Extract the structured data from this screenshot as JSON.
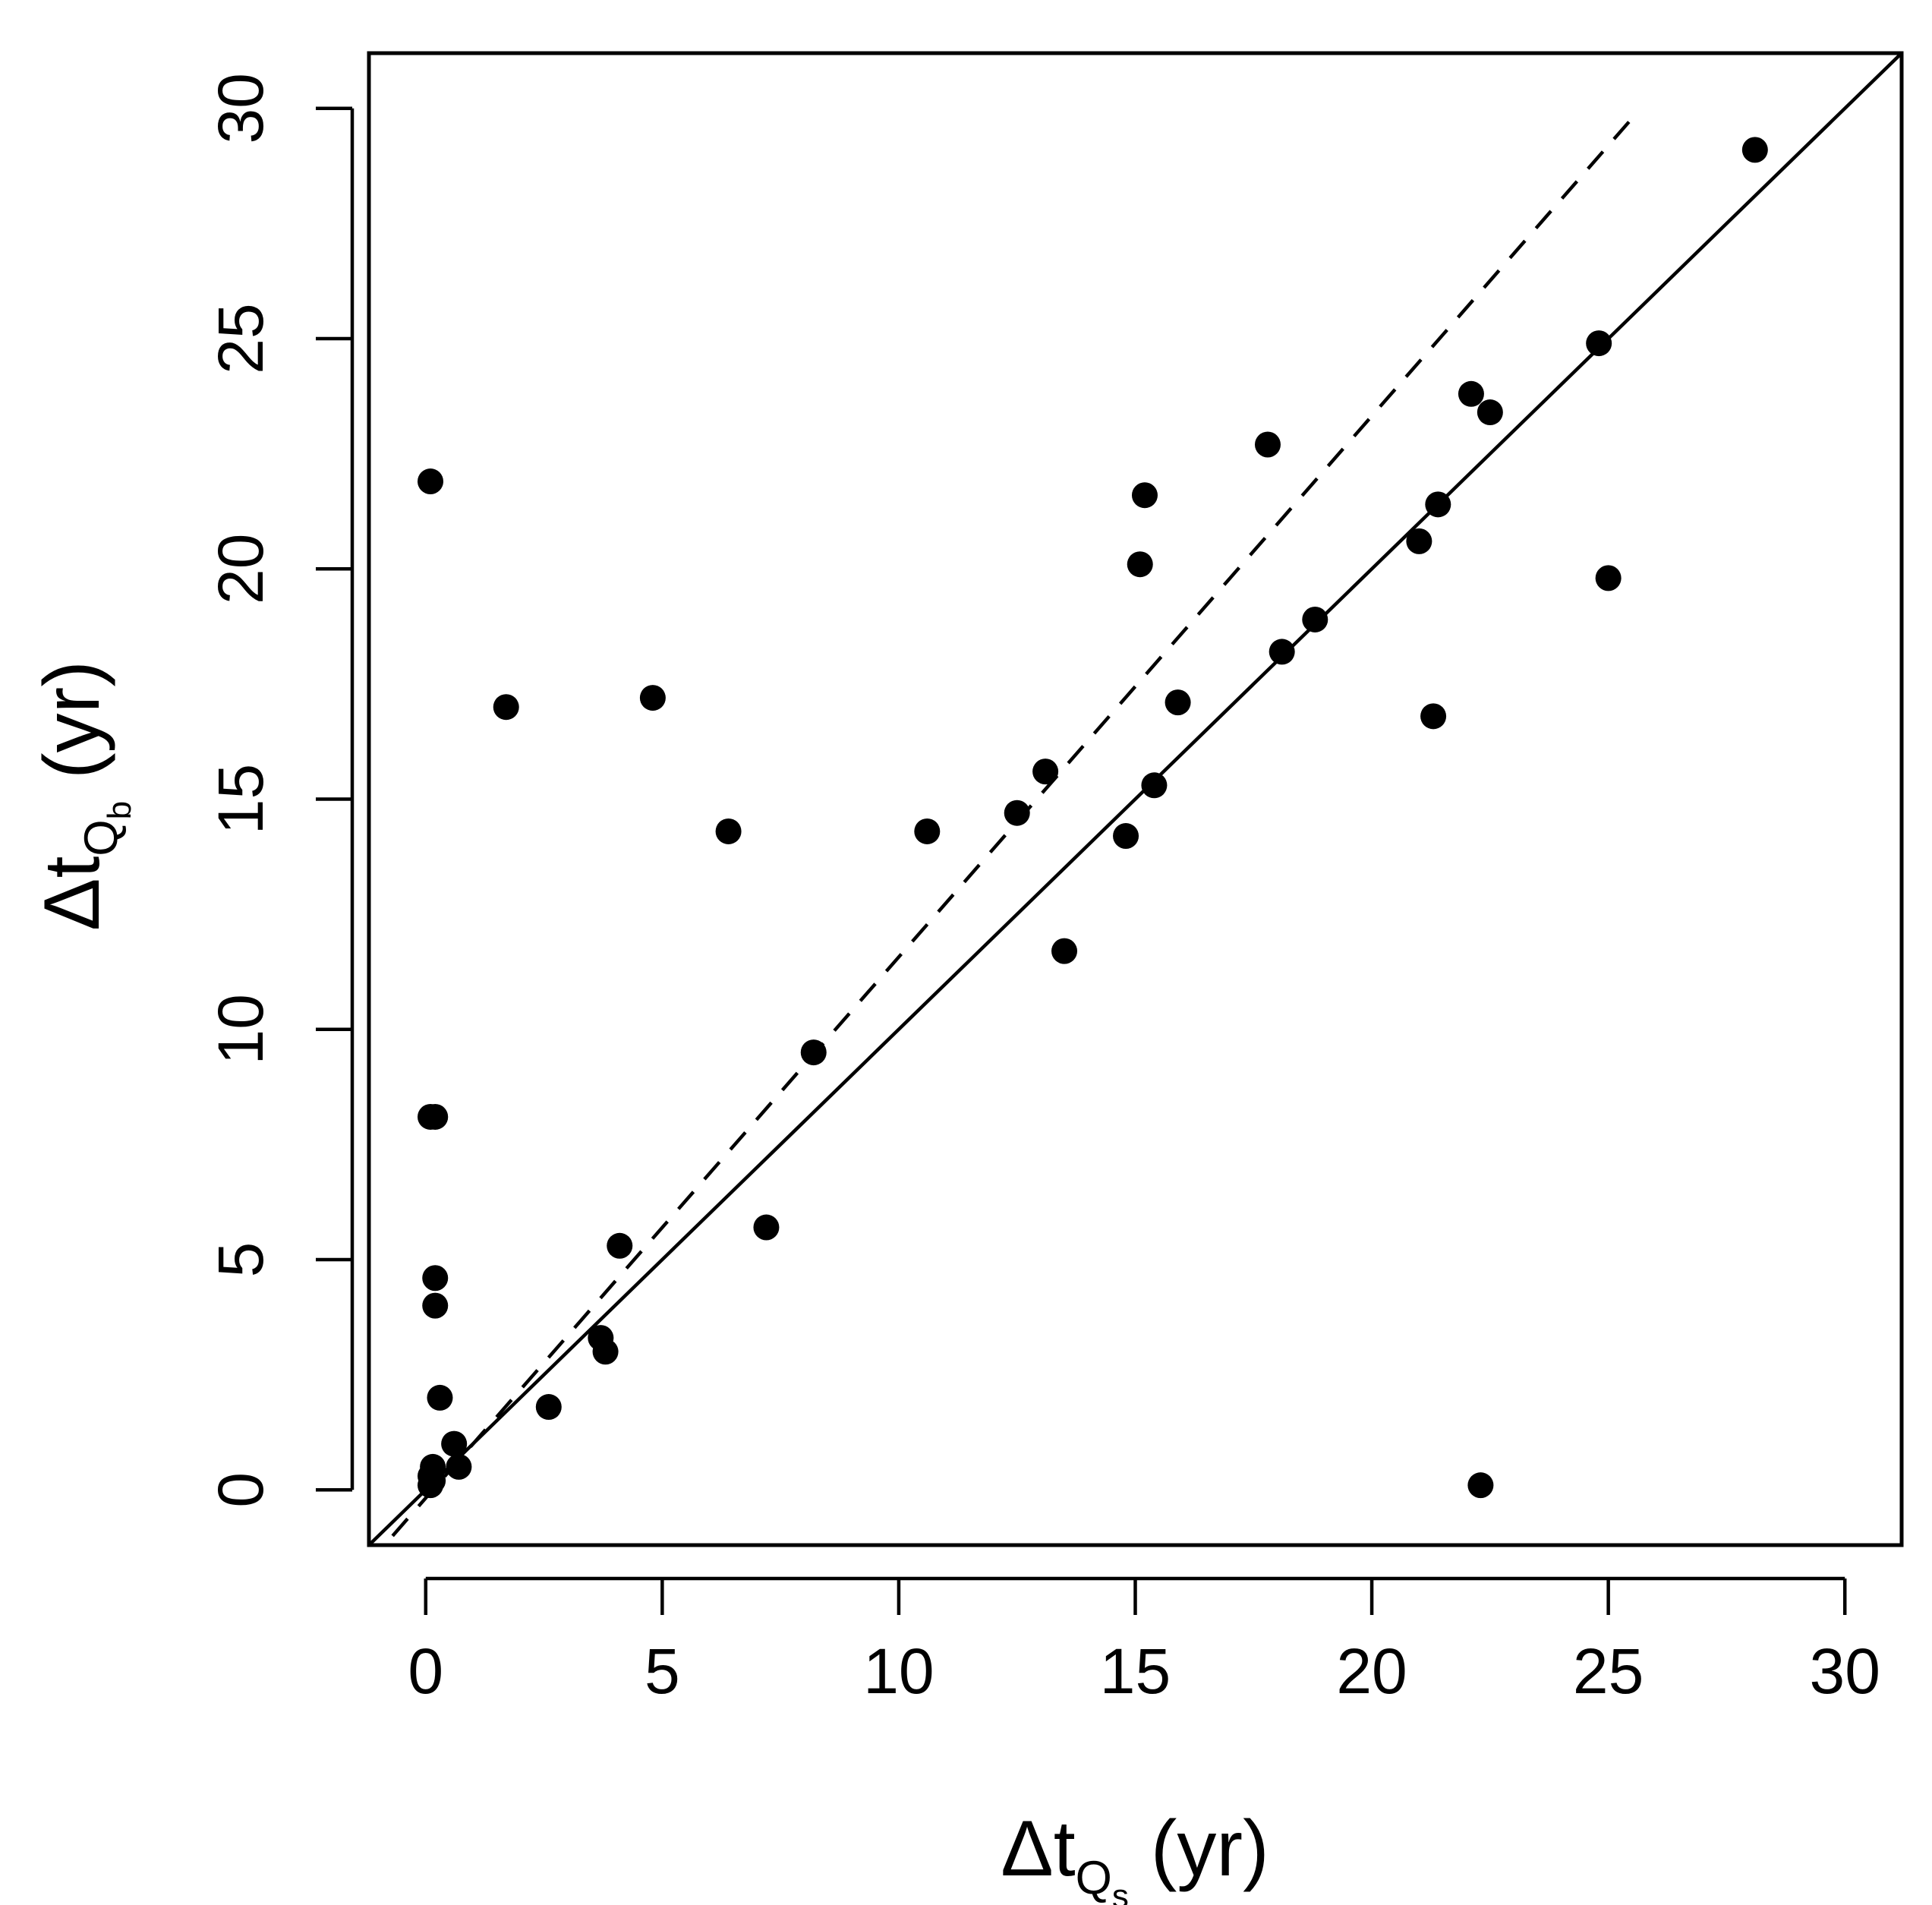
{
  "chart_data": {
    "type": "scatter",
    "title": "",
    "xlabel": {
      "symbol": "Δt",
      "sub": "Q",
      "subsub": "s",
      "unit": " (yr)"
    },
    "ylabel": {
      "symbol": "Δt",
      "sub": "Q",
      "subsub": "b",
      "unit": " (yr)"
    },
    "xlim": [
      -1.2,
      31.2
    ],
    "ylim": [
      -1.2,
      31.2
    ],
    "xticks": [
      0,
      5,
      10,
      15,
      20,
      25,
      30
    ],
    "yticks": [
      0,
      5,
      10,
      15,
      20,
      25,
      30
    ],
    "xtick_labels": [
      "0",
      "5",
      "10",
      "15",
      "20",
      "25",
      "30"
    ],
    "ytick_labels": [
      "0",
      "5",
      "10",
      "15",
      "20",
      "25",
      "30"
    ],
    "grid": false,
    "legend": "none",
    "lines": [
      {
        "name": "1:1 line",
        "style": "solid",
        "x": [
          -1.2,
          31.2
        ],
        "y": [
          -1.2,
          31.2
        ]
      },
      {
        "name": "fitted line",
        "style": "dashed",
        "x": [
          -0.7,
          25.6
        ],
        "y": [
          -1.0,
          29.9
        ]
      }
    ],
    "series": [
      {
        "name": "points",
        "x": [
          0.1,
          0.1,
          0.2,
          0.2,
          0.2,
          0.3,
          0.6,
          0.7,
          0.1,
          0.15,
          0.15,
          0.1,
          1.7,
          2.6,
          3.7,
          3.8,
          4.1,
          4.8,
          6.4,
          7.2,
          8.2,
          10.6,
          12.5,
          13.1,
          13.5,
          14.8,
          15.1,
          15.2,
          15.4,
          15.9,
          17.8,
          18.1,
          18.8,
          21.0,
          21.3,
          21.4,
          22.1,
          22.3,
          22.5,
          24.8,
          25.0,
          28.1
        ],
        "y": [
          21.9,
          8.1,
          8.1,
          4.6,
          4.0,
          2.0,
          1.0,
          0.5,
          0.1,
          0.2,
          0.5,
          0.3,
          17.0,
          1.8,
          3.3,
          3.0,
          5.3,
          17.2,
          14.3,
          5.7,
          9.5,
          14.3,
          14.7,
          15.6,
          11.7,
          14.2,
          20.1,
          21.6,
          15.3,
          17.1,
          22.7,
          18.2,
          18.9,
          20.6,
          16.8,
          21.4,
          23.8,
          0.1,
          23.4,
          24.9,
          19.8,
          29.1
        ]
      }
    ]
  }
}
